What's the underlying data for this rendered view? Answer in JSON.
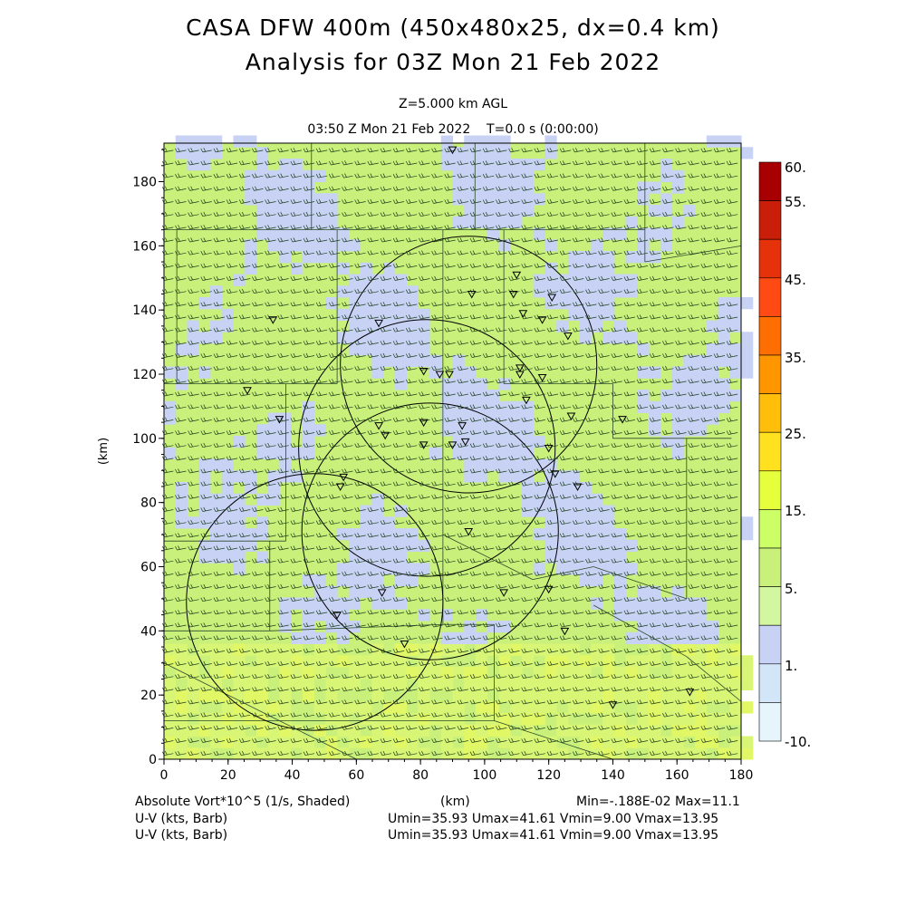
{
  "titles": {
    "line1": "CASA DFW 400m (450x480x25, dx=0.4 km)",
    "line2": "Analysis for 03Z Mon 21 Feb 2022",
    "level": "Z=5.000 km AGL",
    "time": "03:50 Z Mon 21 Feb 2022    T=0.0 s (0:00:00)"
  },
  "footer": {
    "field_label": "Absolute Vort*10^5 (1/s, Shaded)",
    "km_label": "(km)",
    "minmax": "Min=-.188E-02 Max=11.1",
    "wind_label_1": "U-V (kts, Barb)",
    "wind_stats_1": "Umin=35.93 Umax=41.61 Vmin=9.00 Vmax=13.95",
    "wind_label_2": "U-V (kts, Barb)",
    "wind_stats_2": "Umin=35.93 Umax=41.61 Vmin=9.00 Vmax=13.95"
  },
  "chart_data": {
    "type": "heatmap",
    "title": "CASA DFW 400m (450x480x25, dx=0.4 km)",
    "xlabel": "(km)",
    "ylabel": "(km)",
    "xlim": [
      0,
      180
    ],
    "ylim": [
      0,
      192
    ],
    "x_ticks": [
      0,
      20,
      40,
      60,
      80,
      100,
      120,
      140,
      160,
      180
    ],
    "y_ticks": [
      0,
      20,
      40,
      60,
      80,
      100,
      120,
      140,
      160,
      180
    ],
    "colorbar": {
      "levels": [
        "60.",
        "55.",
        "45.",
        "35.",
        "25.",
        "15.",
        "5.",
        "1.",
        "-10."
      ],
      "colors": [
        "#a80000",
        "#c81e0a",
        "#e6320a",
        "#ff4a14",
        "#ff6e00",
        "#ff9600",
        "#ffbe0a",
        "#ffe120",
        "#e6ff3c",
        "#ccff66",
        "#c8f07a",
        "#d2f7a0",
        "#c8d2f5",
        "#d2e6f8",
        "#e6f5fc"
      ]
    },
    "field_range": {
      "min": -0.00188,
      "max": 11.1
    },
    "regions": [
      {
        "xmin": 0,
        "xmax": 180,
        "ymin": 0,
        "ymax": 192,
        "class": "green"
      },
      {
        "xmin": 0,
        "xmax": 180,
        "ymin": 36,
        "ymax": 192,
        "class": "mix"
      },
      {
        "xmin": 0,
        "xmax": 180,
        "ymin": 0,
        "ymax": 36,
        "class": "yellow"
      }
    ],
    "radar_rings": [
      {
        "cx": 95,
        "cy": 123,
        "r": 40
      },
      {
        "cx": 82,
        "cy": 97,
        "r": 40
      },
      {
        "cx": 83,
        "cy": 71,
        "r": 40
      },
      {
        "cx": 47,
        "cy": 49,
        "r": 40
      }
    ],
    "wind": {
      "u_range": [
        35.93,
        41.61
      ],
      "v_range": [
        9.0,
        13.95
      ],
      "units": "kts"
    }
  }
}
